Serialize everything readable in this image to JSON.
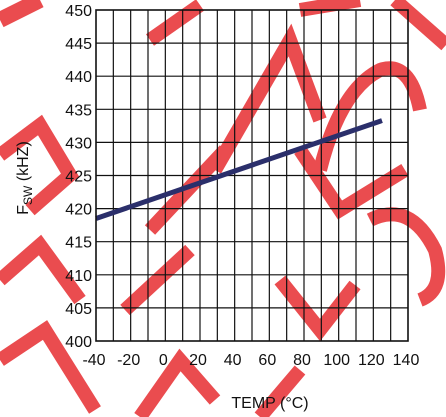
{
  "chart_data": {
    "type": "line",
    "xlabel": "TEMP (°C)",
    "ylabel_main": "F",
    "ylabel_sub": "SW",
    "ylabel_unit": " (kHZ)",
    "xlim": [
      -40,
      140
    ],
    "ylim": [
      400,
      450
    ],
    "x_ticks": [
      -40,
      -20,
      0,
      20,
      40,
      60,
      80,
      100,
      120,
      140
    ],
    "y_ticks": [
      400,
      405,
      410,
      415,
      420,
      425,
      430,
      435,
      440,
      445,
      450
    ],
    "x_minor_grid": [
      -30,
      -10,
      10,
      30,
      50,
      70,
      90,
      110,
      130
    ],
    "grid": true,
    "series": [
      {
        "color": "#2b2f6b",
        "x": [
          -40,
          125
        ],
        "y": [
          418.5,
          433.3
        ]
      }
    ]
  },
  "watermark": {
    "color": "#e8393d"
  }
}
